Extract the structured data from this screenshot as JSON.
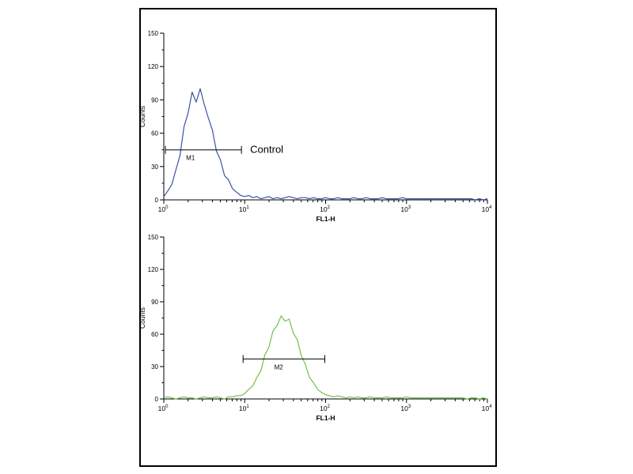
{
  "figure": {
    "background": "#ffffff",
    "border_color": "#000000",
    "description": "flow cytometry overlay figure with two histograms"
  },
  "chart_data": [
    {
      "type": "line",
      "panel": "top",
      "title": "",
      "xlabel": "FL1-H",
      "ylabel": "Counts",
      "ylim": [
        0,
        150
      ],
      "yticks": [
        0,
        30,
        60,
        90,
        120,
        150
      ],
      "xscale": "log10",
      "xlim_exponents": [
        0,
        4
      ],
      "xtick_exponents": [
        0,
        1,
        2,
        3,
        4
      ],
      "xtick_labels": [
        "10^0",
        "10^1",
        "10^2",
        "10^3",
        "10^4"
      ],
      "series": {
        "name": "control-cells-histogram",
        "color": "#3a52a4",
        "x_log10_start": 0,
        "x_log10_step": 0.05,
        "counts": [
          3,
          8,
          14,
          27,
          40,
          66,
          78,
          97,
          88,
          100,
          86,
          74,
          63,
          44,
          36,
          22,
          18,
          10,
          7,
          4,
          3,
          4,
          2,
          3,
          1,
          2,
          3,
          1,
          2,
          1,
          2,
          3,
          2,
          1,
          2,
          2,
          1,
          2,
          1,
          1,
          2,
          1,
          1,
          2,
          1,
          1,
          1,
          2,
          1,
          1,
          2,
          1,
          1,
          1,
          2,
          1,
          1,
          1,
          1,
          2,
          1,
          1,
          1,
          1,
          1,
          1,
          1,
          1,
          1,
          1,
          1,
          1,
          1,
          1,
          1,
          1,
          1,
          0,
          1,
          0,
          1
        ]
      },
      "marker": {
        "label": "M1",
        "label_x_log10": 0.33,
        "y_counts": 45,
        "x_log10_start": 0.02,
        "x_log10_end": 0.96,
        "annotation": "Control"
      }
    },
    {
      "type": "line",
      "panel": "bottom",
      "title": "",
      "xlabel": "FL1-H",
      "ylabel": "Counts",
      "ylim": [
        0,
        150
      ],
      "yticks": [
        0,
        30,
        60,
        90,
        120,
        150
      ],
      "xscale": "log10",
      "xlim_exponents": [
        0,
        4
      ],
      "xtick_exponents": [
        0,
        1,
        2,
        3,
        4
      ],
      "xtick_labels": [
        "10^0",
        "10^1",
        "10^2",
        "10^3",
        "10^4"
      ],
      "series": {
        "name": "stained-cells-histogram",
        "color": "#74c04a",
        "x_log10_start": 0,
        "x_log10_step": 0.05,
        "counts": [
          1,
          2,
          1,
          0,
          1,
          2,
          1,
          1,
          0,
          1,
          2,
          1,
          1,
          2,
          1,
          0,
          2,
          2,
          3,
          3,
          5,
          9,
          12,
          20,
          26,
          41,
          48,
          63,
          68,
          77,
          72,
          74,
          61,
          55,
          40,
          32,
          20,
          15,
          9,
          6,
          4,
          3,
          2,
          3,
          2,
          1,
          2,
          1,
          2,
          1,
          1,
          2,
          1,
          1,
          1,
          2,
          1,
          1,
          1,
          1,
          2,
          1,
          1,
          1,
          1,
          1,
          1,
          1,
          1,
          1,
          1,
          1,
          1,
          1,
          1,
          0,
          1,
          1,
          0,
          1,
          0
        ]
      },
      "marker": {
        "label": "M2",
        "label_x_log10": 1.42,
        "y_counts": 37,
        "x_log10_start": 0.98,
        "x_log10_end": 1.99,
        "annotation": ""
      }
    }
  ]
}
